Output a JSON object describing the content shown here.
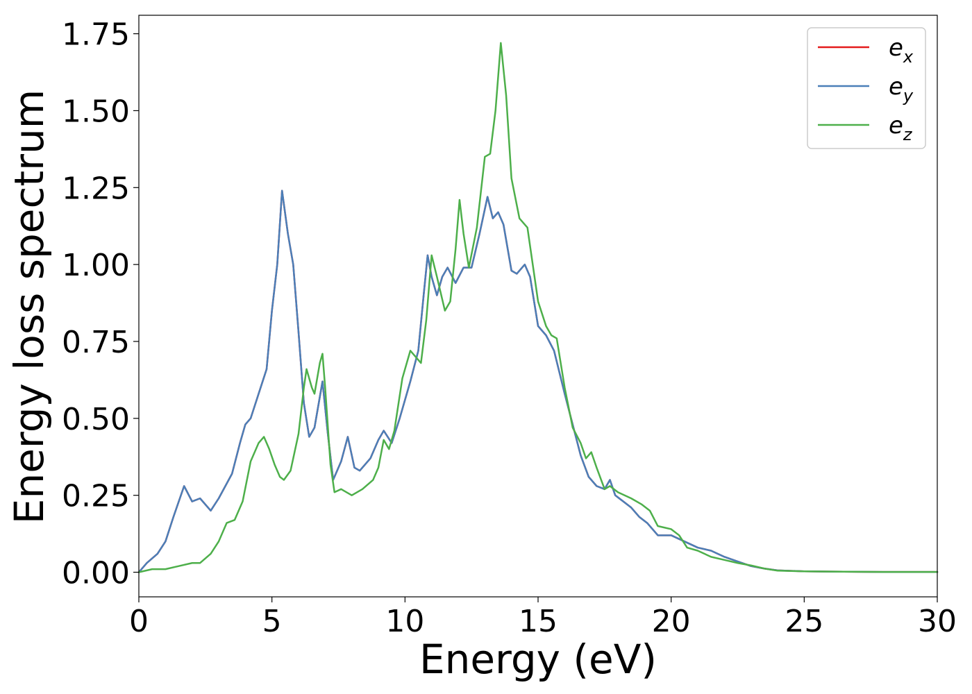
{
  "chart_data": {
    "type": "line",
    "xlabel": "Energy (eV)",
    "ylabel": "Energy loss spectrum",
    "xlim": [
      0,
      30
    ],
    "ylim": [
      -0.08,
      1.81
    ],
    "xticks": [
      0,
      5,
      10,
      15,
      20,
      25,
      30
    ],
    "xtick_labels": [
      "0",
      "5",
      "10",
      "15",
      "20",
      "25",
      "30"
    ],
    "yticks": [
      0,
      0.25,
      0.5,
      0.75,
      1.0,
      1.25,
      1.5,
      1.75
    ],
    "ytick_labels": [
      "0.00",
      "0.25",
      "0.50",
      "0.75",
      "1.00",
      "1.25",
      "1.50",
      "1.75"
    ],
    "grid": false,
    "legend_position": "top-right",
    "series": [
      {
        "name": "e_x",
        "label_base": "e",
        "label_sub": "x",
        "color": "#e41a1c",
        "points": [
          [
            0,
            0
          ],
          [
            0.3,
            0.03
          ],
          [
            0.7,
            0.06
          ],
          [
            1.0,
            0.1
          ],
          [
            1.3,
            0.18
          ],
          [
            1.7,
            0.28
          ],
          [
            2.0,
            0.23
          ],
          [
            2.3,
            0.24
          ],
          [
            2.7,
            0.2
          ],
          [
            3.0,
            0.24
          ],
          [
            3.5,
            0.32
          ],
          [
            3.8,
            0.42
          ],
          [
            4.0,
            0.48
          ],
          [
            4.2,
            0.5
          ],
          [
            4.5,
            0.58
          ],
          [
            4.8,
            0.66
          ],
          [
            5.0,
            0.85
          ],
          [
            5.2,
            1.0
          ],
          [
            5.38,
            1.24
          ],
          [
            5.6,
            1.1
          ],
          [
            5.8,
            1.0
          ],
          [
            6.0,
            0.78
          ],
          [
            6.2,
            0.55
          ],
          [
            6.4,
            0.44
          ],
          [
            6.6,
            0.47
          ],
          [
            6.9,
            0.62
          ],
          [
            7.1,
            0.45
          ],
          [
            7.3,
            0.3
          ],
          [
            7.6,
            0.36
          ],
          [
            7.85,
            0.44
          ],
          [
            8.1,
            0.34
          ],
          [
            8.3,
            0.33
          ],
          [
            8.7,
            0.37
          ],
          [
            9.0,
            0.43
          ],
          [
            9.2,
            0.46
          ],
          [
            9.5,
            0.42
          ],
          [
            9.8,
            0.5
          ],
          [
            10.2,
            0.62
          ],
          [
            10.5,
            0.72
          ],
          [
            10.7,
            0.9
          ],
          [
            10.85,
            1.03
          ],
          [
            11.0,
            0.96
          ],
          [
            11.2,
            0.9
          ],
          [
            11.4,
            0.96
          ],
          [
            11.6,
            0.99
          ],
          [
            11.9,
            0.94
          ],
          [
            12.2,
            0.99
          ],
          [
            12.5,
            0.99
          ],
          [
            12.8,
            1.1
          ],
          [
            13.1,
            1.22
          ],
          [
            13.3,
            1.15
          ],
          [
            13.5,
            1.17
          ],
          [
            13.7,
            1.13
          ],
          [
            14.0,
            0.98
          ],
          [
            14.2,
            0.97
          ],
          [
            14.5,
            1.0
          ],
          [
            14.7,
            0.96
          ],
          [
            15.0,
            0.8
          ],
          [
            15.3,
            0.77
          ],
          [
            15.6,
            0.72
          ],
          [
            16.0,
            0.58
          ],
          [
            16.3,
            0.48
          ],
          [
            16.6,
            0.38
          ],
          [
            16.9,
            0.31
          ],
          [
            17.2,
            0.28
          ],
          [
            17.5,
            0.27
          ],
          [
            17.7,
            0.3
          ],
          [
            17.9,
            0.25
          ],
          [
            18.2,
            0.23
          ],
          [
            18.5,
            0.21
          ],
          [
            18.8,
            0.18
          ],
          [
            19.1,
            0.16
          ],
          [
            19.5,
            0.12
          ],
          [
            20.0,
            0.12
          ],
          [
            20.5,
            0.1
          ],
          [
            21.0,
            0.08
          ],
          [
            21.5,
            0.07
          ],
          [
            22.0,
            0.05
          ],
          [
            22.5,
            0.035
          ],
          [
            23.0,
            0.02
          ],
          [
            23.5,
            0.012
          ],
          [
            24.0,
            0.006
          ],
          [
            25.0,
            0.003
          ],
          [
            26.0,
            0.002
          ],
          [
            28.0,
            0.001
          ],
          [
            30.0,
            0.001
          ]
        ]
      },
      {
        "name": "e_y",
        "label_base": "e",
        "label_sub": "y",
        "color": "#4a7fb8",
        "points": [
          [
            0,
            0
          ],
          [
            0.3,
            0.03
          ],
          [
            0.7,
            0.06
          ],
          [
            1.0,
            0.1
          ],
          [
            1.3,
            0.18
          ],
          [
            1.7,
            0.28
          ],
          [
            2.0,
            0.23
          ],
          [
            2.3,
            0.24
          ],
          [
            2.7,
            0.2
          ],
          [
            3.0,
            0.24
          ],
          [
            3.5,
            0.32
          ],
          [
            3.8,
            0.42
          ],
          [
            4.0,
            0.48
          ],
          [
            4.2,
            0.5
          ],
          [
            4.5,
            0.58
          ],
          [
            4.8,
            0.66
          ],
          [
            5.0,
            0.85
          ],
          [
            5.2,
            1.0
          ],
          [
            5.38,
            1.24
          ],
          [
            5.6,
            1.1
          ],
          [
            5.8,
            1.0
          ],
          [
            6.0,
            0.78
          ],
          [
            6.2,
            0.55
          ],
          [
            6.4,
            0.44
          ],
          [
            6.6,
            0.47
          ],
          [
            6.9,
            0.62
          ],
          [
            7.1,
            0.45
          ],
          [
            7.3,
            0.3
          ],
          [
            7.6,
            0.36
          ],
          [
            7.85,
            0.44
          ],
          [
            8.1,
            0.34
          ],
          [
            8.3,
            0.33
          ],
          [
            8.7,
            0.37
          ],
          [
            9.0,
            0.43
          ],
          [
            9.2,
            0.46
          ],
          [
            9.5,
            0.42
          ],
          [
            9.8,
            0.5
          ],
          [
            10.2,
            0.62
          ],
          [
            10.5,
            0.72
          ],
          [
            10.7,
            0.9
          ],
          [
            10.85,
            1.03
          ],
          [
            11.0,
            0.96
          ],
          [
            11.2,
            0.9
          ],
          [
            11.4,
            0.96
          ],
          [
            11.6,
            0.99
          ],
          [
            11.9,
            0.94
          ],
          [
            12.2,
            0.99
          ],
          [
            12.5,
            0.99
          ],
          [
            12.8,
            1.1
          ],
          [
            13.1,
            1.22
          ],
          [
            13.3,
            1.15
          ],
          [
            13.5,
            1.17
          ],
          [
            13.7,
            1.13
          ],
          [
            14.0,
            0.98
          ],
          [
            14.2,
            0.97
          ],
          [
            14.5,
            1.0
          ],
          [
            14.7,
            0.96
          ],
          [
            15.0,
            0.8
          ],
          [
            15.3,
            0.77
          ],
          [
            15.6,
            0.72
          ],
          [
            16.0,
            0.58
          ],
          [
            16.3,
            0.48
          ],
          [
            16.6,
            0.38
          ],
          [
            16.9,
            0.31
          ],
          [
            17.2,
            0.28
          ],
          [
            17.5,
            0.27
          ],
          [
            17.7,
            0.3
          ],
          [
            17.9,
            0.25
          ],
          [
            18.2,
            0.23
          ],
          [
            18.5,
            0.21
          ],
          [
            18.8,
            0.18
          ],
          [
            19.1,
            0.16
          ],
          [
            19.5,
            0.12
          ],
          [
            20.0,
            0.12
          ],
          [
            20.5,
            0.1
          ],
          [
            21.0,
            0.08
          ],
          [
            21.5,
            0.07
          ],
          [
            22.0,
            0.05
          ],
          [
            22.5,
            0.035
          ],
          [
            23.0,
            0.02
          ],
          [
            23.5,
            0.012
          ],
          [
            24.0,
            0.006
          ],
          [
            25.0,
            0.003
          ],
          [
            26.0,
            0.002
          ],
          [
            28.0,
            0.001
          ],
          [
            30.0,
            0.001
          ]
        ]
      },
      {
        "name": "e_z",
        "label_base": "e",
        "label_sub": "z",
        "color": "#4daf4a",
        "points": [
          [
            0,
            0
          ],
          [
            0.5,
            0.01
          ],
          [
            1.0,
            0.01
          ],
          [
            1.5,
            0.02
          ],
          [
            2.0,
            0.03
          ],
          [
            2.3,
            0.03
          ],
          [
            2.7,
            0.06
          ],
          [
            3.0,
            0.1
          ],
          [
            3.3,
            0.16
          ],
          [
            3.6,
            0.17
          ],
          [
            3.9,
            0.23
          ],
          [
            4.2,
            0.36
          ],
          [
            4.5,
            0.42
          ],
          [
            4.7,
            0.44
          ],
          [
            4.9,
            0.4
          ],
          [
            5.1,
            0.35
          ],
          [
            5.3,
            0.31
          ],
          [
            5.45,
            0.3
          ],
          [
            5.7,
            0.33
          ],
          [
            6.0,
            0.45
          ],
          [
            6.2,
            0.6
          ],
          [
            6.3,
            0.66
          ],
          [
            6.5,
            0.6
          ],
          [
            6.6,
            0.58
          ],
          [
            6.8,
            0.68
          ],
          [
            6.9,
            0.71
          ],
          [
            7.0,
            0.6
          ],
          [
            7.2,
            0.35
          ],
          [
            7.35,
            0.26
          ],
          [
            7.6,
            0.27
          ],
          [
            8.0,
            0.25
          ],
          [
            8.4,
            0.27
          ],
          [
            8.8,
            0.3
          ],
          [
            9.0,
            0.34
          ],
          [
            9.2,
            0.43
          ],
          [
            9.4,
            0.4
          ],
          [
            9.6,
            0.46
          ],
          [
            9.9,
            0.63
          ],
          [
            10.2,
            0.72
          ],
          [
            10.4,
            0.7
          ],
          [
            10.6,
            0.68
          ],
          [
            10.8,
            0.82
          ],
          [
            11.0,
            1.03
          ],
          [
            11.2,
            0.96
          ],
          [
            11.5,
            0.85
          ],
          [
            11.7,
            0.88
          ],
          [
            11.9,
            1.05
          ],
          [
            12.05,
            1.21
          ],
          [
            12.2,
            1.1
          ],
          [
            12.4,
            0.99
          ],
          [
            12.7,
            1.12
          ],
          [
            13.0,
            1.35
          ],
          [
            13.2,
            1.36
          ],
          [
            13.4,
            1.5
          ],
          [
            13.6,
            1.72
          ],
          [
            13.8,
            1.55
          ],
          [
            14.0,
            1.28
          ],
          [
            14.3,
            1.15
          ],
          [
            14.6,
            1.12
          ],
          [
            14.8,
            1.0
          ],
          [
            15.0,
            0.88
          ],
          [
            15.3,
            0.8
          ],
          [
            15.5,
            0.77
          ],
          [
            15.7,
            0.76
          ],
          [
            16.0,
            0.6
          ],
          [
            16.3,
            0.47
          ],
          [
            16.6,
            0.42
          ],
          [
            16.8,
            0.37
          ],
          [
            17.0,
            0.39
          ],
          [
            17.2,
            0.34
          ],
          [
            17.5,
            0.27
          ],
          [
            17.7,
            0.28
          ],
          [
            18.0,
            0.26
          ],
          [
            18.5,
            0.24
          ],
          [
            18.9,
            0.22
          ],
          [
            19.2,
            0.2
          ],
          [
            19.5,
            0.15
          ],
          [
            20.0,
            0.14
          ],
          [
            20.3,
            0.12
          ],
          [
            20.6,
            0.08
          ],
          [
            21.0,
            0.07
          ],
          [
            21.5,
            0.05
          ],
          [
            22.0,
            0.04
          ],
          [
            22.5,
            0.03
          ],
          [
            23.0,
            0.022
          ],
          [
            23.5,
            0.012
          ],
          [
            24.0,
            0.005
          ],
          [
            25.0,
            0.003
          ],
          [
            26.0,
            0.002
          ],
          [
            28.0,
            0.001
          ],
          [
            30.0,
            0.001
          ]
        ]
      }
    ]
  }
}
